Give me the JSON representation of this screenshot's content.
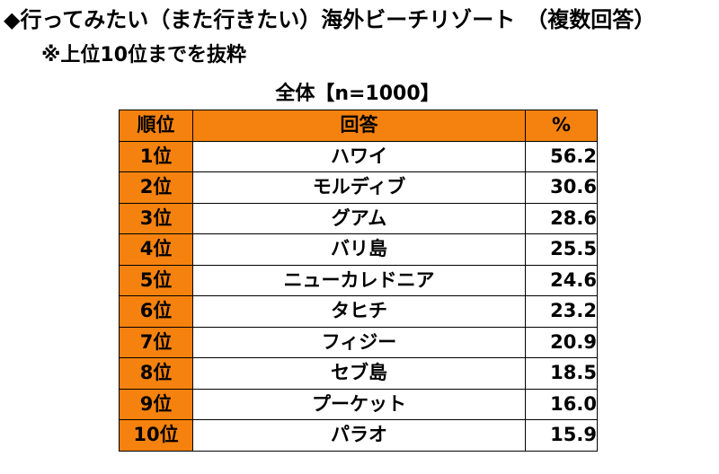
{
  "title": "◆行ってみたい（また行きたい）海外ビーチリゾート　（複数回答）",
  "subtitle": "※上位10位までを抜粋",
  "colors": {
    "header_bg": "#F5820E",
    "rank_bg": "#F5820E",
    "cell_bg": "#FFFFFF",
    "border": "#000000"
  },
  "chart_data": {
    "type": "table",
    "caption": "全体【n=1000】",
    "columns": [
      "順位",
      "回答",
      "%"
    ],
    "rows": [
      {
        "rank": "1位",
        "answer": "ハワイ",
        "pct": "56.2"
      },
      {
        "rank": "2位",
        "answer": "モルディブ",
        "pct": "30.6"
      },
      {
        "rank": "3位",
        "answer": "グアム",
        "pct": "28.6"
      },
      {
        "rank": "4位",
        "answer": "バリ島",
        "pct": "25.5"
      },
      {
        "rank": "5位",
        "answer": "ニューカレドニア",
        "pct": "24.6"
      },
      {
        "rank": "6位",
        "answer": "タヒチ",
        "pct": "23.2"
      },
      {
        "rank": "7位",
        "answer": "フィジー",
        "pct": "20.9"
      },
      {
        "rank": "8位",
        "answer": "セブ島",
        "pct": "18.5"
      },
      {
        "rank": "9位",
        "answer": "プーケット",
        "pct": "16.0"
      },
      {
        "rank": "10位",
        "answer": "パラオ",
        "pct": "15.9"
      }
    ]
  }
}
